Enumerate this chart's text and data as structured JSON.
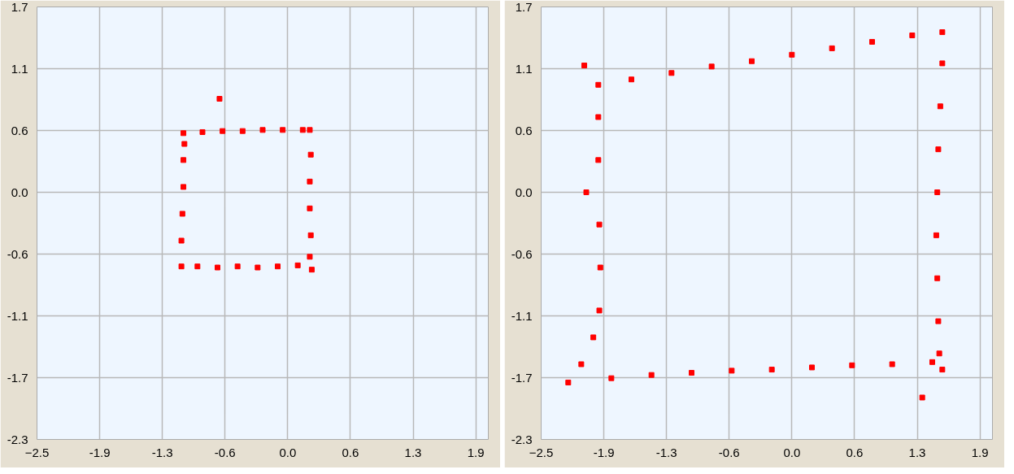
{
  "chart_data": [
    {
      "type": "scatter",
      "marker": "square",
      "grid": true,
      "xlim": [
        -2.5,
        2.0
      ],
      "ylim": [
        -2.3,
        1.725
      ],
      "xticks": [
        -2.5,
        {
          "value": -1.875,
          "label": "-1.9"
        },
        {
          "value": -1.25,
          "label": "-1.3"
        },
        {
          "value": -0.625,
          "label": "-0.6"
        },
        {
          "value": 0,
          "label": "0.0"
        },
        {
          "value": 0.625,
          "label": "0.6"
        },
        {
          "value": 1.25,
          "label": "1.3"
        },
        {
          "value": 1.875,
          "label": "1.9"
        }
      ],
      "yticks": [
        {
          "value": -2.3,
          "label": "-2.3"
        },
        {
          "value": -1.725,
          "label": "-1.7"
        },
        {
          "value": -1.15,
          "label": "-1.1"
        },
        {
          "value": -0.575,
          "label": "-0.6"
        },
        {
          "value": 0,
          "label": "0.0"
        },
        {
          "value": 0.575,
          "label": "0.6"
        },
        {
          "value": 1.15,
          "label": "1.1"
        },
        {
          "value": 1.725,
          "label": "1.7"
        }
      ],
      "series": [
        {
          "color": "#ff0000",
          "x": [
            -1.04,
            -0.85,
            -0.65,
            -0.45,
            -0.25,
            -0.05,
            0.15,
            0.22,
            0.23,
            0.22,
            0.22,
            0.23,
            0.22,
            0.24,
            0.1,
            -0.1,
            -0.3,
            -0.5,
            -0.7,
            -0.9,
            -1.06,
            -1.06,
            -1.05,
            -1.04,
            -1.04,
            -1.03,
            -0.68
          ],
          "values": [
            0.55,
            0.56,
            0.57,
            0.57,
            0.58,
            0.58,
            0.58,
            0.58,
            0.35,
            0.1,
            -0.15,
            -0.4,
            -0.6,
            -0.72,
            -0.68,
            -0.69,
            -0.7,
            -0.69,
            -0.7,
            -0.69,
            -0.69,
            -0.45,
            -0.2,
            0.05,
            0.3,
            0.45,
            0.87
          ]
        }
      ]
    },
    {
      "type": "scatter",
      "marker": "square",
      "grid": true,
      "xlim": [
        -2.5,
        2.0
      ],
      "ylim": [
        -2.3,
        1.725
      ],
      "xticks": [
        -2.5,
        {
          "value": -1.875,
          "label": "-1.9"
        },
        {
          "value": -1.25,
          "label": "-1.3"
        },
        {
          "value": -0.625,
          "label": "-0.6"
        },
        {
          "value": 0,
          "label": "0.0"
        },
        {
          "value": 0.625,
          "label": "0.6"
        },
        {
          "value": 1.25,
          "label": "1.3"
        },
        {
          "value": 1.875,
          "label": "1.9"
        }
      ],
      "yticks": [
        {
          "value": -2.3,
          "label": "-2.3"
        },
        {
          "value": -1.725,
          "label": "-1.7"
        },
        {
          "value": -1.15,
          "label": "-1.1"
        },
        {
          "value": -0.575,
          "label": "-0.6"
        },
        {
          "value": 0,
          "label": "0.0"
        },
        {
          "value": 0.575,
          "label": "0.6"
        },
        {
          "value": 1.15,
          "label": "1.1"
        },
        {
          "value": 1.725,
          "label": "1.7"
        }
      ],
      "series": [
        {
          "color": "#ff0000",
          "x": [
            -1.93,
            -1.6,
            -1.2,
            -0.8,
            -0.4,
            0,
            0.4,
            0.8,
            1.2,
            1.5,
            1.5,
            1.48,
            1.46,
            1.45,
            1.44,
            1.45,
            1.46,
            1.47,
            1.5,
            1.4,
            1.0,
            0.6,
            0.2,
            -0.2,
            -0.6,
            -1.0,
            -1.4,
            -1.8,
            -2.23,
            -2.1,
            -1.98,
            -1.92,
            -1.91,
            -1.92,
            -1.93,
            -1.93,
            -2.07,
            -2.05,
            1.3
          ],
          "values": [
            1.0,
            1.05,
            1.11,
            1.17,
            1.22,
            1.28,
            1.34,
            1.4,
            1.46,
            1.49,
            1.2,
            0.8,
            0.4,
            0.0,
            -0.4,
            -0.8,
            -1.2,
            -1.5,
            -1.65,
            -1.58,
            -1.6,
            -1.61,
            -1.63,
            -1.65,
            -1.66,
            -1.68,
            -1.7,
            -1.73,
            -1.77,
            -1.6,
            -1.35,
            -1.1,
            -0.7,
            -0.3,
            0.3,
            0.7,
            1.18,
            0.0,
            -1.91
          ]
        }
      ]
    }
  ]
}
